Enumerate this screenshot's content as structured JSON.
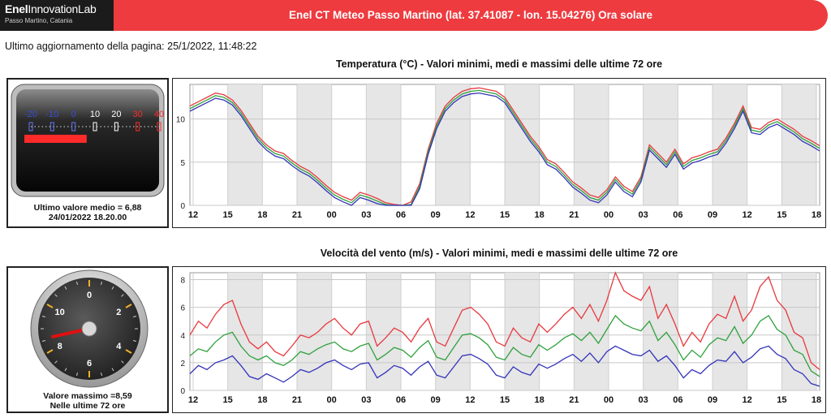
{
  "header": {
    "logo_brand_strong": "Enel",
    "logo_brand_light": "InnovationLab",
    "logo_location": "Passo Martino, Catania",
    "title": "Enel CT Meteo Passo Martino (lat. 37.41087 - lon. 15.04276) Ora solare"
  },
  "updated_text": "Ultimo aggiornamento della pagina: 25/1/2022, 11:48:22",
  "colors": {
    "banner": "#ee3b3f",
    "max_series": "#e8383d",
    "mid_series": "#2ea13c",
    "min_series": "#3333bb",
    "temp_red": "#ff2a2a",
    "needle": "#e01010"
  },
  "temperature": {
    "title": "Temperatura (°C) - Valori minimi, medi e massimi delle ultime 72 ore",
    "gauge_scale": [
      "-20",
      "-10",
      "0",
      "10",
      "20",
      "30",
      "40"
    ],
    "gauge_value": 6.88,
    "caption_line1": "Ultimo valore medio = 6,88",
    "caption_line2": "24/01/2022 18.20.00"
  },
  "wind": {
    "title": "Velocità del vento (m/s) - Valori minimi, medi e massimi delle ultime 72 ore",
    "dial_labels": [
      "0",
      "2",
      "4",
      "6",
      "8",
      "10"
    ],
    "needle_value": 8.59,
    "caption_line1": "Valore massimo =8,59",
    "caption_line2": "Nelle ultime 72 ore"
  },
  "chart_data": [
    {
      "type": "line",
      "name": "temperature",
      "x_hours": [
        0,
        1,
        2,
        3,
        4,
        5,
        6,
        7,
        8,
        9,
        10,
        11,
        12,
        13,
        14,
        15,
        16,
        17,
        18,
        19,
        20,
        21,
        22,
        23,
        24,
        25,
        26,
        27,
        28,
        29,
        30,
        31,
        32,
        33,
        34,
        35,
        36,
        37,
        38,
        39,
        40,
        41,
        42,
        43,
        44,
        45,
        46,
        47,
        48,
        49,
        50,
        51,
        52,
        53,
        54,
        55,
        56,
        57,
        58,
        59,
        60,
        61,
        62,
        63,
        64,
        65,
        66,
        67,
        68,
        69,
        70,
        71,
        72,
        73,
        74
      ],
      "xticks": [
        "12",
        "15",
        "18",
        "21",
        "00",
        "03",
        "06",
        "09",
        "12",
        "15",
        "18",
        "21",
        "00",
        "03",
        "06",
        "09",
        "12",
        "15",
        "18"
      ],
      "ylim": [
        0,
        14
      ],
      "yticks": [
        0,
        5,
        10
      ],
      "series": [
        {
          "values": [
            11.5,
            12,
            12.5,
            13,
            12.8,
            12.2,
            11,
            9.5,
            8,
            7,
            6.3,
            6,
            5.2,
            4.5,
            4,
            3.2,
            2.3,
            1.5,
            1,
            0.6,
            1.5,
            1.2,
            0.8,
            0.3,
            0.1,
            0,
            0.4,
            2.5,
            6.5,
            9.5,
            11.5,
            12.5,
            13.2,
            13.5,
            13.6,
            13.4,
            13.2,
            12.5,
            11,
            9.5,
            8,
            6.8,
            5.3,
            4.8,
            3.8,
            2.7,
            2,
            1.2,
            0.9,
            1.8,
            3.3,
            2.2,
            1.6,
            3.3,
            7,
            6,
            5,
            6.5,
            4.8,
            5.5,
            5.8,
            6.2,
            6.5,
            7.8,
            9.5,
            11.5,
            9,
            8.8,
            9.6,
            10,
            9.4,
            8.8,
            8,
            7.5,
            6.9
          ]
        },
        {
          "values": [
            11.2,
            11.7,
            12.2,
            12.7,
            12.5,
            11.9,
            10.7,
            9.2,
            7.7,
            6.7,
            6,
            5.7,
            4.9,
            4.2,
            3.7,
            2.9,
            2,
            1.2,
            0.7,
            0.3,
            1.2,
            0.9,
            0.5,
            0.1,
            0,
            0,
            0.1,
            2.2,
            6.2,
            9.2,
            11.2,
            12.2,
            12.9,
            13.2,
            13.3,
            13.1,
            12.9,
            12.2,
            10.7,
            9.2,
            7.7,
            6.5,
            5,
            4.5,
            3.5,
            2.4,
            1.7,
            0.9,
            0.6,
            1.5,
            3,
            1.9,
            1.3,
            3,
            6.7,
            5.7,
            4.7,
            6.2,
            4.5,
            5.2,
            5.5,
            5.9,
            6.2,
            7.5,
            9.2,
            11.2,
            8.7,
            8.5,
            9.3,
            9.7,
            9.1,
            8.5,
            7.7,
            7.2,
            6.6
          ]
        },
        {
          "values": [
            10.9,
            11.4,
            11.9,
            12.4,
            12.2,
            11.6,
            10.4,
            8.9,
            7.4,
            6.4,
            5.7,
            5.4,
            4.6,
            3.9,
            3.4,
            2.6,
            1.7,
            0.9,
            0.4,
            0,
            0.9,
            0.6,
            0.2,
            0,
            0,
            0,
            0,
            1.9,
            5.9,
            8.9,
            10.9,
            11.9,
            12.6,
            12.9,
            13,
            12.8,
            12.6,
            11.9,
            10.4,
            8.9,
            7.4,
            6.2,
            4.7,
            4.2,
            3.2,
            2.1,
            1.4,
            0.6,
            0.3,
            1.2,
            2.7,
            1.6,
            1,
            2.7,
            6.4,
            5.4,
            4.4,
            5.9,
            4.2,
            4.9,
            5.2,
            5.6,
            5.9,
            7.2,
            8.9,
            10.9,
            8.4,
            8.2,
            9,
            9.4,
            8.8,
            8.2,
            7.4,
            6.9,
            6.3
          ]
        }
      ]
    },
    {
      "type": "line",
      "name": "wind",
      "x_hours": [
        0,
        1,
        2,
        3,
        4,
        5,
        6,
        7,
        8,
        9,
        10,
        11,
        12,
        13,
        14,
        15,
        16,
        17,
        18,
        19,
        20,
        21,
        22,
        23,
        24,
        25,
        26,
        27,
        28,
        29,
        30,
        31,
        32,
        33,
        34,
        35,
        36,
        37,
        38,
        39,
        40,
        41,
        42,
        43,
        44,
        45,
        46,
        47,
        48,
        49,
        50,
        51,
        52,
        53,
        54,
        55,
        56,
        57,
        58,
        59,
        60,
        61,
        62,
        63,
        64,
        65,
        66,
        67,
        68,
        69,
        70,
        71,
        72,
        73,
        74
      ],
      "xticks": [
        "12",
        "15",
        "18",
        "21",
        "00",
        "03",
        "06",
        "09",
        "12",
        "15",
        "18",
        "21",
        "00",
        "03",
        "06",
        "09",
        "12",
        "15",
        "18"
      ],
      "ylim": [
        0,
        8.5
      ],
      "yticks": [
        0,
        2,
        4,
        6,
        8
      ],
      "series": [
        {
          "values": [
            4,
            5,
            4.5,
            5.5,
            6.2,
            6.5,
            4.8,
            3.5,
            3,
            3.5,
            2.8,
            2.5,
            3.2,
            4,
            3.8,
            4.2,
            4.8,
            5.2,
            4.5,
            4,
            4.8,
            5,
            3.2,
            3.8,
            4.5,
            4.2,
            3.5,
            4.5,
            5.2,
            3.5,
            3.2,
            4.5,
            5.8,
            6,
            5.5,
            4.8,
            3.5,
            3.2,
            4.5,
            3.8,
            3.5,
            4.8,
            4.2,
            4.8,
            5.5,
            6,
            5.2,
            6.2,
            5,
            6.5,
            8.5,
            7.2,
            6.8,
            6.5,
            7.5,
            5.2,
            6.2,
            4.8,
            3.2,
            4.2,
            3.5,
            4.8,
            5.5,
            5.2,
            6.8,
            5,
            5.8,
            7.5,
            8.2,
            6.5,
            5.8,
            4.2,
            3.8,
            2,
            1.5
          ]
        },
        {
          "values": [
            2.5,
            3,
            2.8,
            3.5,
            4,
            4.2,
            3.2,
            2.5,
            2.2,
            2.5,
            2,
            1.8,
            2.2,
            2.8,
            2.6,
            3,
            3.3,
            3.5,
            3,
            2.8,
            3.2,
            3.4,
            2.2,
            2.6,
            3.1,
            2.9,
            2.4,
            3.1,
            3.6,
            2.4,
            2.2,
            3.1,
            4,
            4.1,
            3.8,
            3.3,
            2.4,
            2.2,
            3.1,
            2.6,
            2.4,
            3.3,
            2.9,
            3.3,
            3.8,
            4.1,
            3.6,
            4.2,
            3.4,
            4.4,
            5.4,
            4.8,
            4.5,
            4.3,
            5,
            3.6,
            4.2,
            3.3,
            2.2,
            2.9,
            2.4,
            3.3,
            3.8,
            3.6,
            4.6,
            3.4,
            4,
            5,
            5.4,
            4.4,
            4,
            2.9,
            2.6,
            1.4,
            1
          ]
        },
        {
          "values": [
            1.2,
            1.8,
            1.5,
            2,
            2.2,
            2.5,
            1.8,
            1,
            0.8,
            1.2,
            0.9,
            0.6,
            1,
            1.5,
            1.3,
            1.6,
            2,
            2.2,
            1.8,
            1.5,
            1.9,
            2,
            0.9,
            1.3,
            1.8,
            1.6,
            1.1,
            1.7,
            2.1,
            1.1,
            0.9,
            1.7,
            2.5,
            2.6,
            2.3,
            1.9,
            1.1,
            0.9,
            1.7,
            1.3,
            1.1,
            1.9,
            1.6,
            1.9,
            2.3,
            2.6,
            2.1,
            2.7,
            2,
            2.8,
            3.2,
            2.9,
            2.6,
            2.5,
            2.9,
            2.1,
            2.5,
            1.8,
            0.9,
            1.5,
            1.2,
            1.8,
            2.2,
            2.1,
            2.8,
            2,
            2.4,
            3,
            3.2,
            2.6,
            2.3,
            1.5,
            1.2,
            0.5,
            0.3
          ]
        }
      ]
    }
  ]
}
